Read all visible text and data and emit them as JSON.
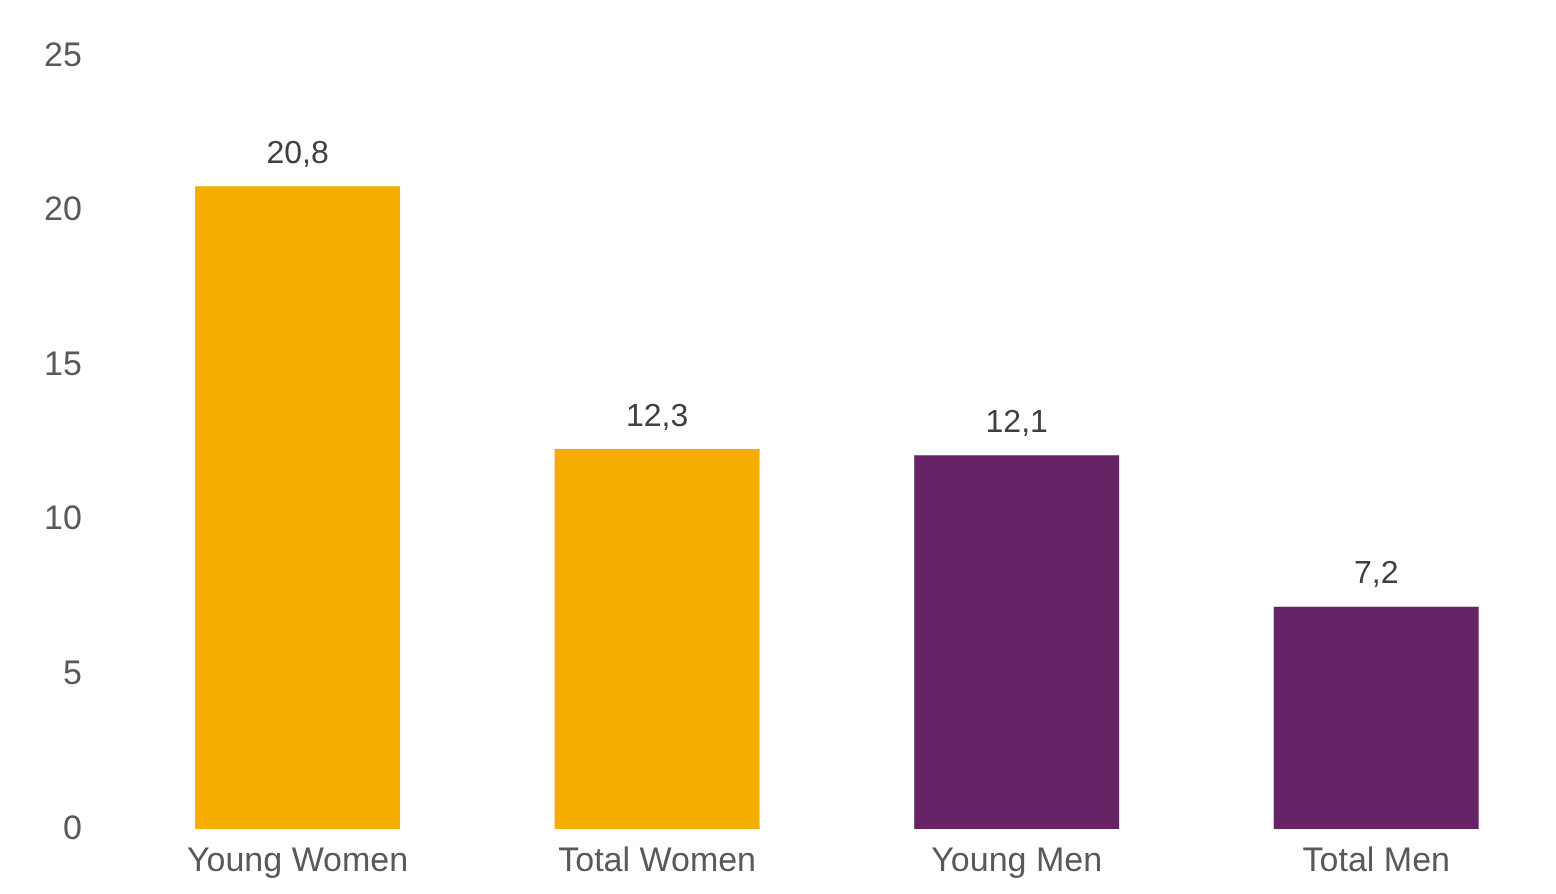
{
  "chart_data": {
    "type": "bar",
    "categories": [
      "Young Women",
      "Total Women",
      "Young Men",
      "Total Men"
    ],
    "values": [
      20.8,
      12.3,
      12.1,
      7.2
    ],
    "colors": [
      "#f5ad00",
      "#f5ad00",
      "#662366",
      "#662366"
    ],
    "value_labels": [
      "20,8",
      "12,3",
      "12,1",
      "7,2"
    ],
    "ylim": [
      0,
      25
    ],
    "yticks": [
      0,
      5,
      10,
      15,
      20,
      25
    ],
    "grid": false,
    "legend": false
  }
}
